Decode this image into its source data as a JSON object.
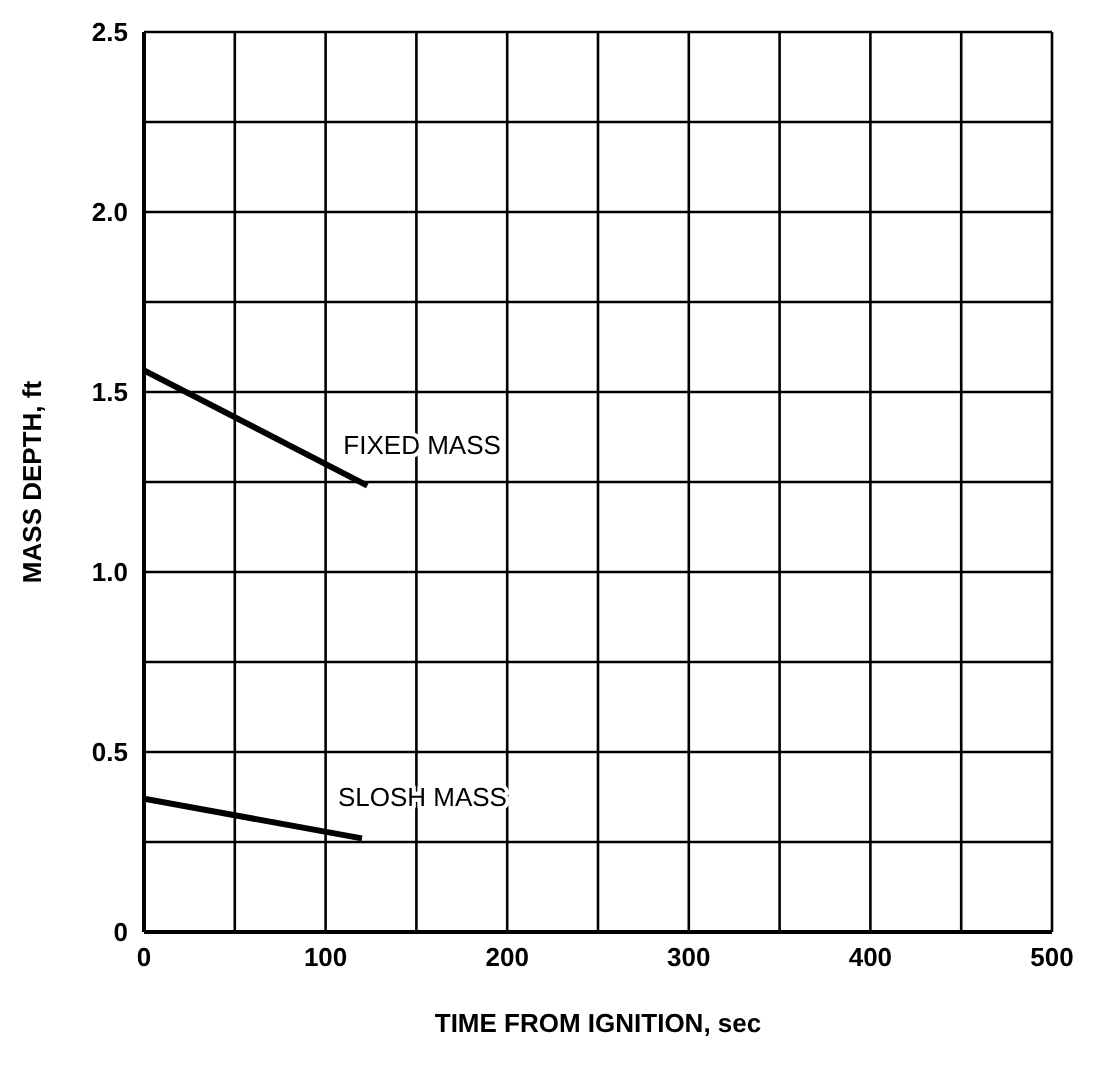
{
  "chart_data": {
    "type": "line",
    "xlabel": "TIME FROM IGNITION, sec",
    "ylabel": "MASS DEPTH, ft",
    "xlim": [
      0,
      500
    ],
    "xticks": [
      0,
      {
        "value": 50,
        "label": null
      },
      100,
      {
        "value": 150,
        "label": null
      },
      200,
      {
        "value": 250,
        "label": null
      },
      300,
      {
        "value": 350,
        "label": null
      },
      400,
      {
        "value": 450,
        "label": null
      },
      500
    ],
    "ylim": [
      0,
      2.5
    ],
    "yticks": [
      0,
      {
        "value": 0.25,
        "label": null
      },
      {
        "value": 0.5,
        "label": "0.5"
      },
      {
        "value": 0.75,
        "label": null
      },
      {
        "value": 1,
        "label": "1.0"
      },
      {
        "value": 1.25,
        "label": null
      },
      {
        "value": 1.5,
        "label": "1.5"
      },
      {
        "value": 1.75,
        "label": null
      },
      {
        "value": 2,
        "label": "2.0"
      },
      {
        "value": 2.25,
        "label": null
      },
      {
        "value": 2.5,
        "label": "2.5"
      }
    ],
    "grid": true,
    "legend": false,
    "marker": "none",
    "line_style": "solid",
    "series": [
      {
        "name": "FIXED MASS",
        "color": "#000000",
        "x": [
          0,
          123
        ],
        "values": [
          1.56,
          1.24
        ]
      },
      {
        "name": "SLOSH MASS",
        "color": "#000000",
        "x": [
          0,
          120
        ],
        "values": [
          0.37,
          0.26
        ]
      }
    ]
  }
}
